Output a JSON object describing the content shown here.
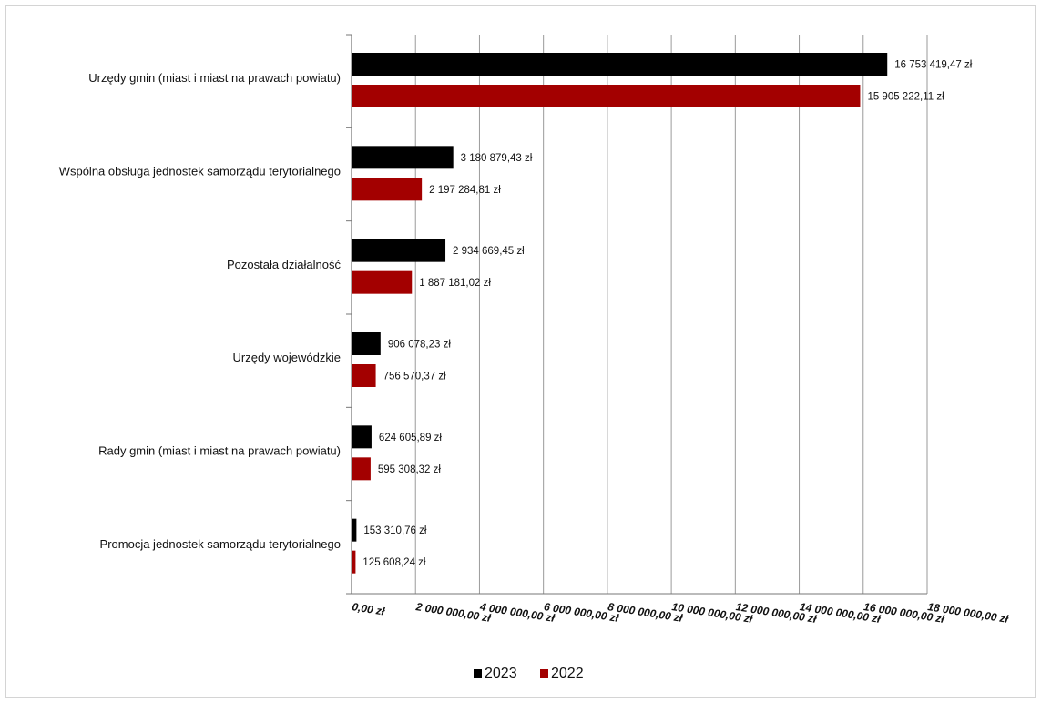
{
  "chart_data": {
    "type": "bar",
    "orientation": "horizontal",
    "title": "",
    "xlabel": "",
    "ylabel": "",
    "xlim": [
      0,
      18000000
    ],
    "grid": true,
    "legend_position": "bottom",
    "categories": [
      "Urzędy gmin (miast i miast na prawach powiatu)",
      "Wspólna obsługa jednostek samorządu terytorialnego",
      "Pozostała działalność",
      "Urzędy wojewódzkie",
      "Rady gmin (miast i miast na prawach powiatu)",
      "Promocja jednostek samorządu terytorialnego"
    ],
    "series": [
      {
        "name": "2023",
        "color": "#000000",
        "values": [
          16753419.47,
          3180879.43,
          2934669.45,
          906078.23,
          624605.89,
          153310.76
        ],
        "labels": [
          "16 753 419,47 zł",
          "3 180 879,43 zł",
          "2 934 669,45 zł",
          "906 078,23 zł",
          "624 605,89 zł",
          "153 310,76 zł"
        ]
      },
      {
        "name": "2022",
        "color": "#a30000",
        "values": [
          15905222.11,
          2197284.81,
          1887181.02,
          756570.37,
          595308.32,
          125608.24
        ],
        "labels": [
          "15 905 222,11 zł",
          "2 197 284,81 zł",
          "1 887 181,02 zł",
          "756 570,37 zł",
          "595 308,32 zł",
          "125 608,24 zł"
        ]
      }
    ],
    "x_ticks": [
      0,
      2000000,
      4000000,
      6000000,
      8000000,
      10000000,
      12000000,
      14000000,
      16000000,
      18000000
    ],
    "x_tick_labels": [
      "0,00 zł",
      "2 000 000,00 zł",
      "4 000 000,00 zł",
      "6 000 000,00 zł",
      "8 000 000,00 zł",
      "10 000 000,00 zł",
      "12 000 000,00 zł",
      "14 000 000,00 zł",
      "16 000 000,00 zł",
      "18 000 000,00 zł"
    ]
  }
}
